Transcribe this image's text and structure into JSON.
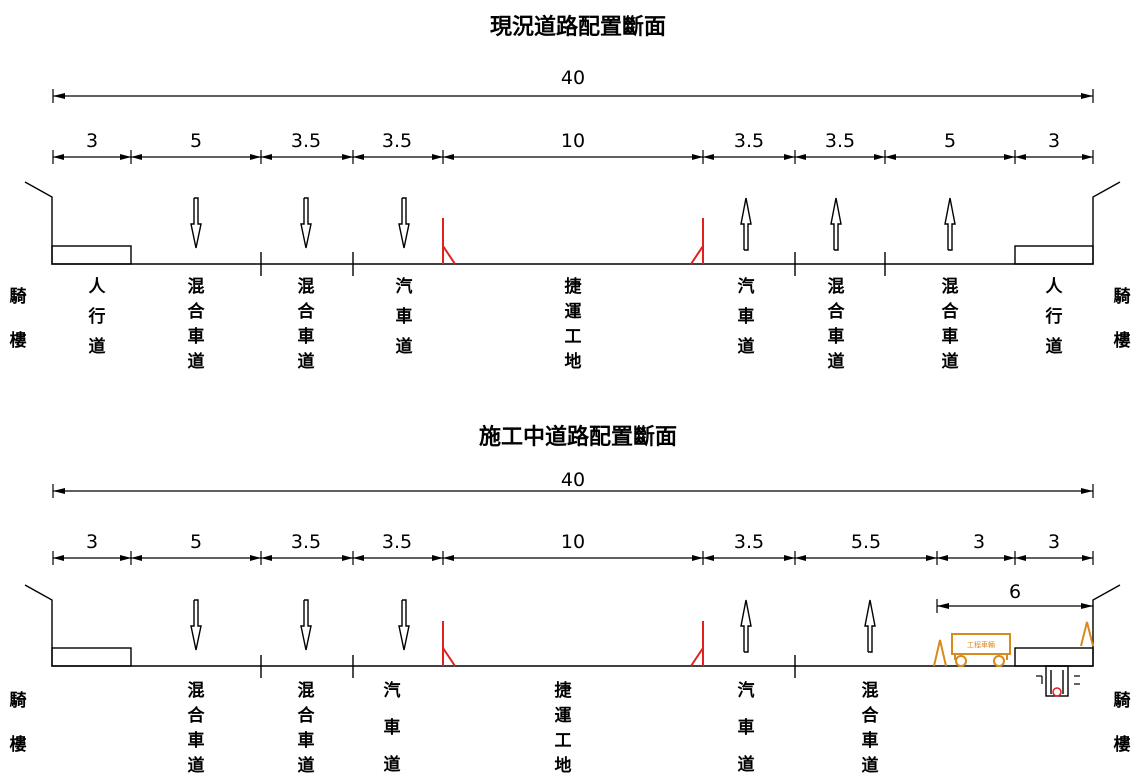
{
  "colors": {
    "line": "#000000",
    "median": "#e0211f",
    "construction": "#d98a1c"
  },
  "sections": [
    {
      "title": "現況道路配置斷面",
      "total": "40",
      "dims": [
        "3",
        "5",
        "3.5",
        "3.5",
        "10",
        "3.5",
        "3.5",
        "5",
        "3"
      ],
      "arcade_label": "騎樓",
      "lanes": [
        "人行道",
        "混合車道",
        "混合車道",
        "汽車道",
        "捷運工地",
        "汽車道",
        "混合車道",
        "混合車道",
        "人行道"
      ]
    },
    {
      "title": "施工中道路配置斷面",
      "total": "40",
      "dims": [
        "3",
        "5",
        "3.5",
        "3.5",
        "10",
        "3.5",
        "5.5",
        "3",
        "3"
      ],
      "extra_dim": "6",
      "vehicle_label": "工程車輛",
      "arcade_label": "騎樓",
      "lanes": [
        "",
        "混合車道",
        "混合車道",
        "汽車道",
        "捷運工地",
        "汽車道",
        "混合車道",
        "",
        ""
      ]
    }
  ]
}
